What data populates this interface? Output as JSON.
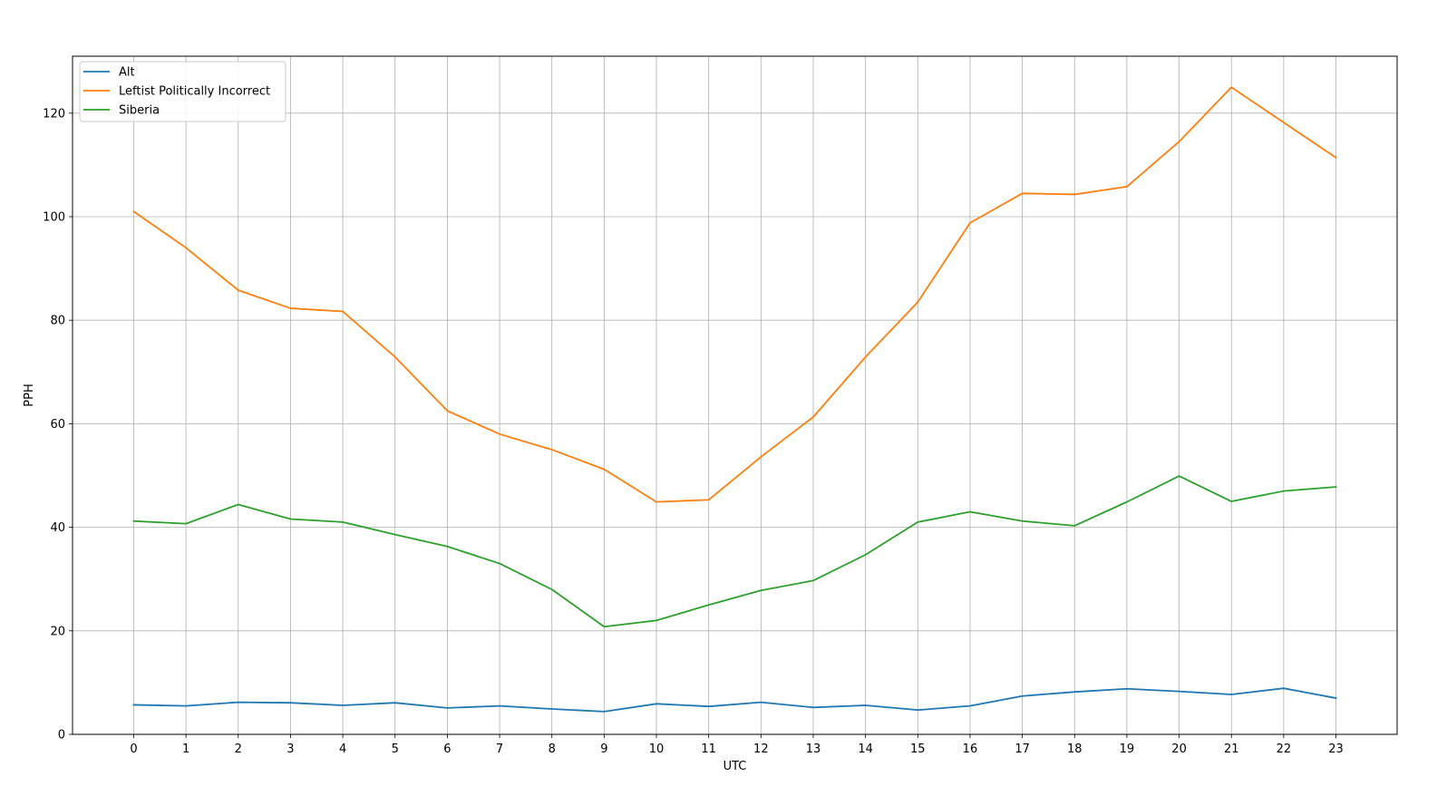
{
  "chart_data": {
    "type": "line",
    "title": "",
    "xlabel": "UTC",
    "ylabel": "PPH",
    "x": [
      0,
      1,
      2,
      3,
      4,
      5,
      6,
      7,
      8,
      9,
      10,
      11,
      12,
      13,
      14,
      15,
      16,
      17,
      18,
      19,
      20,
      21,
      22,
      23
    ],
    "x_ticks": [
      "0",
      "1",
      "2",
      "3",
      "4",
      "5",
      "6",
      "7",
      "8",
      "9",
      "10",
      "11",
      "12",
      "13",
      "14",
      "15",
      "16",
      "17",
      "18",
      "19",
      "20",
      "21",
      "22",
      "23"
    ],
    "y_ticks": [
      "0",
      "20",
      "40",
      "60",
      "80",
      "100",
      "120"
    ],
    "xlim": [
      -1.17,
      24.17
    ],
    "ylim": [
      0,
      131
    ],
    "grid": true,
    "legend_position": "top-left",
    "series": [
      {
        "name": "Alt",
        "color": "#1f77b4",
        "values": [
          5.7,
          5.5,
          6.2,
          6.1,
          5.6,
          6.1,
          5.1,
          5.5,
          4.9,
          4.4,
          5.9,
          5.4,
          6.2,
          5.2,
          5.6,
          4.7,
          5.5,
          7.4,
          8.2,
          8.8,
          8.3,
          7.7,
          8.9,
          7.0
        ]
      },
      {
        "name": "Leftist Politically Incorrect",
        "color": "#ff7f0e",
        "values": [
          101.0,
          94.0,
          85.8,
          82.3,
          81.7,
          72.9,
          62.5,
          58.0,
          55.0,
          51.2,
          44.9,
          45.3,
          53.6,
          61.3,
          72.9,
          83.5,
          98.8,
          104.5,
          104.3,
          105.8,
          114.5,
          125.0,
          118.2,
          111.4
        ]
      },
      {
        "name": "Siberia",
        "color": "#2ca02c",
        "values": [
          41.2,
          40.7,
          44.4,
          41.6,
          41.0,
          38.6,
          36.3,
          33.0,
          28.0,
          20.8,
          22.0,
          25.0,
          27.8,
          29.7,
          34.7,
          41.0,
          43.0,
          41.2,
          40.3,
          44.9,
          49.9,
          45.0,
          47.0,
          47.8
        ]
      }
    ]
  }
}
